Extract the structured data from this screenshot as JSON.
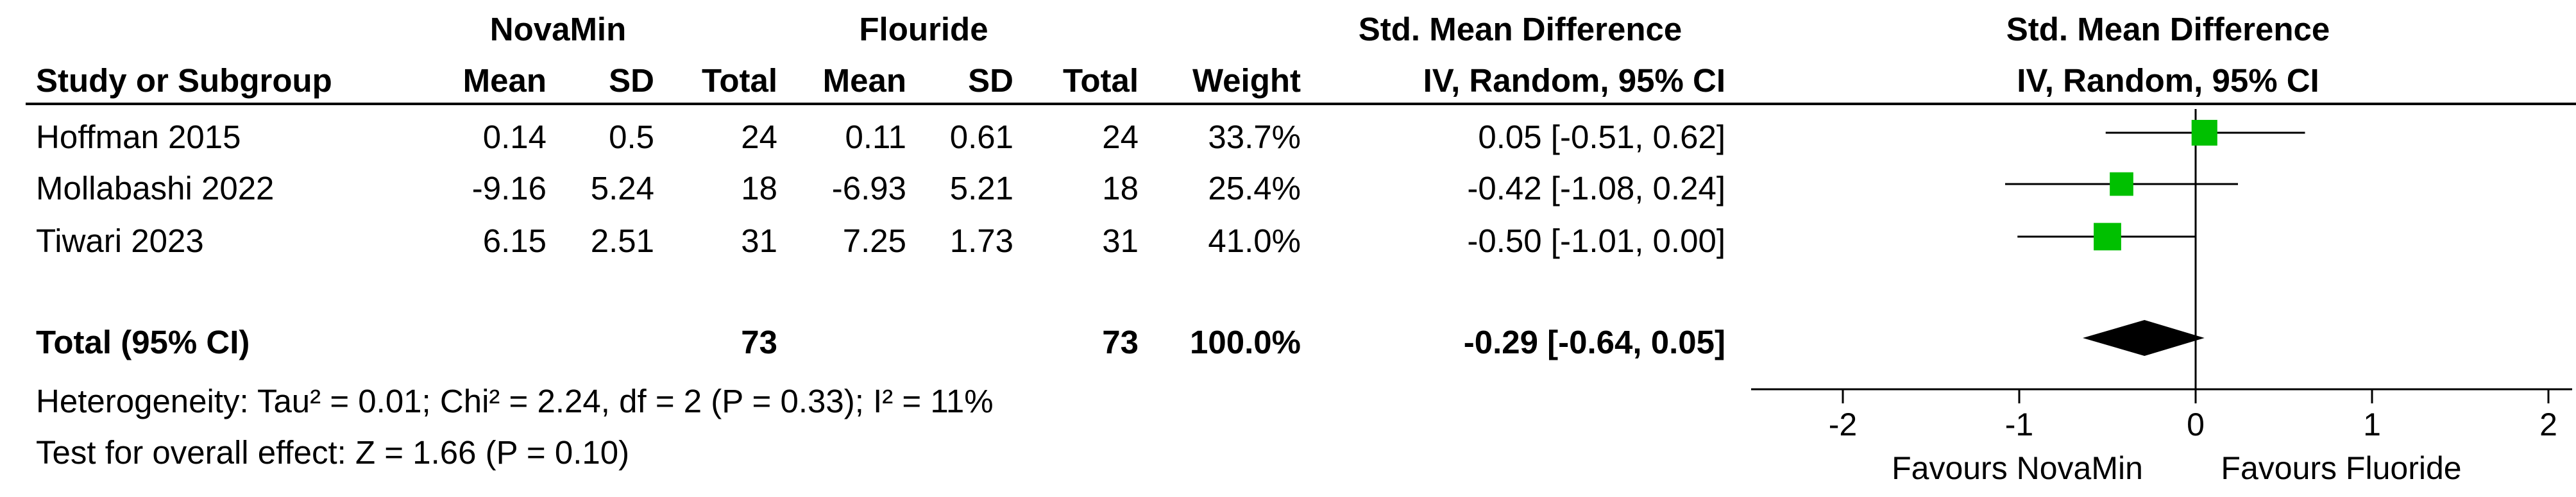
{
  "headers": {
    "group1": "NovaMin",
    "group2": "Flouride",
    "smd_table": "Std. Mean Difference",
    "smd_method_table": "IV, Random, 95% CI",
    "smd_plot": "Std. Mean Difference",
    "smd_method_plot": "IV, Random, 95% CI",
    "study": "Study or Subgroup",
    "mean1": "Mean",
    "sd1": "SD",
    "total1": "Total",
    "mean2": "Mean",
    "sd2": "SD",
    "total2": "Total",
    "weight": "Weight"
  },
  "studies": [
    {
      "name": "Hoffman 2015",
      "mean1": "0.14",
      "sd1": "0.5",
      "total1": "24",
      "mean2": "0.11",
      "sd2": "0.61",
      "total2": "24",
      "weight": "33.7%",
      "ci": "0.05 [-0.51, 0.62]"
    },
    {
      "name": "Mollabashi 2022",
      "mean1": "-9.16",
      "sd1": "5.24",
      "total1": "18",
      "mean2": "-6.93",
      "sd2": "5.21",
      "total2": "18",
      "weight": "25.4%",
      "ci": "-0.42 [-1.08, 0.24]"
    },
    {
      "name": "Tiwari 2023",
      "mean1": "6.15",
      "sd1": "2.51",
      "total1": "31",
      "mean2": "7.25",
      "sd2": "1.73",
      "total2": "31",
      "weight": "41.0%",
      "ci": "-0.50 [-1.01, 0.00]"
    }
  ],
  "total": {
    "label": "Total (95% CI)",
    "total1": "73",
    "total2": "73",
    "weight": "100.0%",
    "ci": "-0.29 [-0.64, 0.05]"
  },
  "heterogeneity": "Heterogeneity: Tau² = 0.01; Chi² = 2.24, df = 2 (P = 0.33); I² = 11%",
  "overall_effect": "Test for overall effect: Z = 1.66 (P = 0.10)",
  "axis": {
    "favours_left": "Favours NovaMin",
    "favours_right": "Favours Fluoride"
  },
  "colors": {
    "marker": "#00c000",
    "diamond": "#000000",
    "line": "#000000"
  },
  "chart_data": {
    "type": "forest",
    "xlim": [
      -2,
      2
    ],
    "ticks": [
      -2,
      -1,
      0,
      1,
      2
    ],
    "tick_labels": [
      "-2",
      "-1",
      "0",
      "1",
      "2"
    ],
    "studies": [
      {
        "name": "Hoffman 2015",
        "smd": 0.05,
        "lo": -0.51,
        "hi": 0.62,
        "weight": 33.7
      },
      {
        "name": "Mollabashi 2022",
        "smd": -0.42,
        "lo": -1.08,
        "hi": 0.24,
        "weight": 25.4
      },
      {
        "name": "Tiwari 2023",
        "smd": -0.5,
        "lo": -1.01,
        "hi": 0.0,
        "weight": 41.0
      }
    ],
    "pooled": {
      "smd": -0.29,
      "lo": -0.64,
      "hi": 0.05
    }
  }
}
